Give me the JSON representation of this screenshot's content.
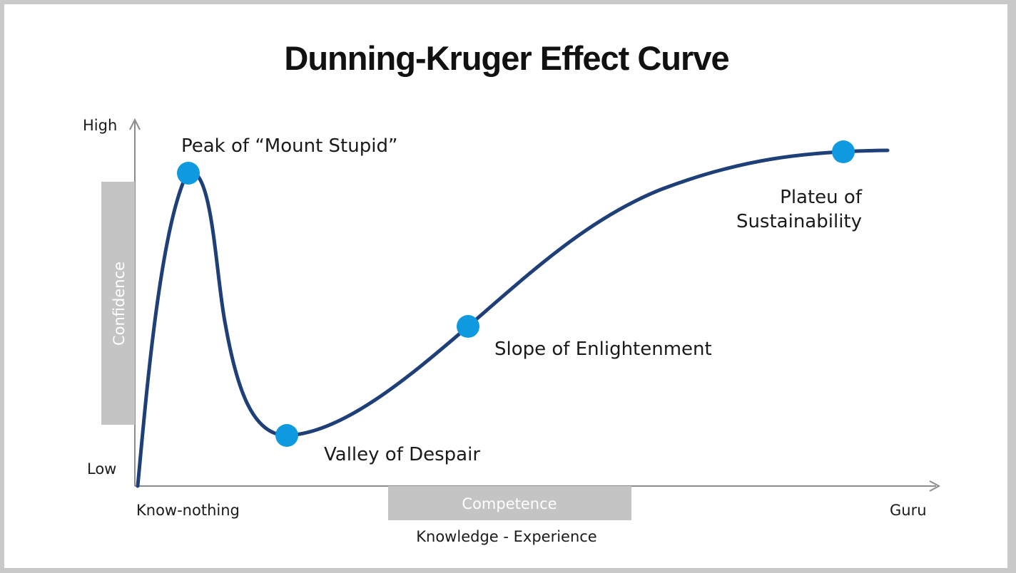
{
  "title": "Dunning-Kruger Effect Curve",
  "y_axis": {
    "label": "Confidence",
    "high": "High",
    "low": "Low"
  },
  "x_axis": {
    "label": "Competence",
    "sublabel": "Knowledge - Experience",
    "start": "Know-nothing",
    "end": "Guru"
  },
  "stages": [
    {
      "name": "peak",
      "lines": [
        "Peak of “Mount Stupid”"
      ]
    },
    {
      "name": "valley",
      "lines": [
        "Valley of Despair"
      ]
    },
    {
      "name": "slope",
      "lines": [
        "Slope of Enlightenment"
      ]
    },
    {
      "name": "plateau",
      "lines": [
        "Plateu of",
        "Sustainability"
      ]
    }
  ],
  "colors": {
    "curve": "#1f3f78",
    "marker": "#0f9ae0",
    "axis": "#8c8c8c",
    "label_box": "#c4c4c4",
    "frame": "#c9c9c9"
  }
}
